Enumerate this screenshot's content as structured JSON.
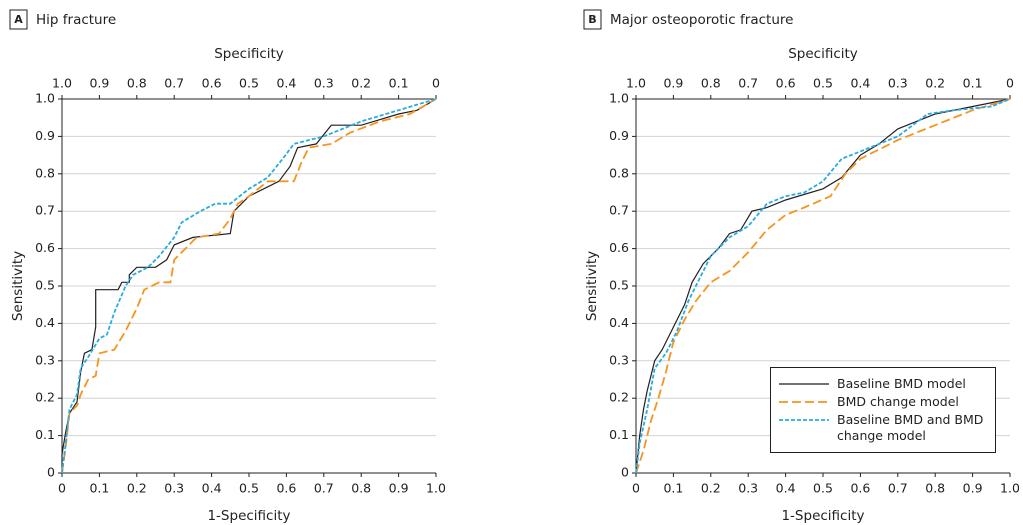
{
  "chart_data": [
    {
      "type": "line",
      "panel_label": "A",
      "title": "Hip fracture",
      "x2label": "Specificity",
      "xlabel": "1-Specificity",
      "ylabel": "Sensitivity",
      "xlim": [
        0,
        1
      ],
      "xticks": [
        0,
        0.1,
        0.2,
        0.3,
        0.4,
        0.5,
        0.6,
        0.7,
        0.8,
        0.9,
        {
          "value": 1,
          "label": "1.0"
        }
      ],
      "x2lim": [
        1,
        0
      ],
      "x2ticks": [
        {
          "value": 1,
          "label": "1.0"
        },
        0.9,
        0.8,
        0.7,
        0.6,
        0.5,
        0.4,
        0.3,
        0.2,
        0.1,
        0
      ],
      "ylim": [
        0,
        1
      ],
      "yticks": [
        0,
        0.1,
        0.2,
        0.3,
        0.4,
        0.5,
        0.6,
        0.7,
        0.8,
        0.9,
        {
          "value": 1,
          "label": "1.0"
        }
      ],
      "grid": true,
      "series": [
        {
          "color": "#231f20",
          "style": "solid",
          "x": [
            0,
            0,
            0.01,
            0.02,
            0.04,
            0.05,
            0.06,
            0.08,
            0.09,
            0.09,
            0.15,
            0.16,
            0.18,
            0.18,
            0.2,
            0.25,
            0.28,
            0.3,
            0.35,
            0.45,
            0.46,
            0.5,
            0.58,
            0.61,
            0.63,
            0.68,
            0.72,
            0.8,
            0.9,
            0.95,
            1
          ],
          "values": [
            0,
            0.05,
            0.11,
            0.16,
            0.19,
            0.27,
            0.32,
            0.33,
            0.39,
            0.49,
            0.49,
            0.51,
            0.51,
            0.53,
            0.55,
            0.55,
            0.57,
            0.61,
            0.63,
            0.64,
            0.7,
            0.74,
            0.78,
            0.82,
            0.87,
            0.88,
            0.93,
            0.93,
            0.96,
            0.97,
            1
          ]
        },
        {
          "color": "#f7941d",
          "style": "dashed",
          "x": [
            0,
            0.01,
            0.02,
            0.04,
            0.05,
            0.07,
            0.09,
            0.1,
            0.14,
            0.17,
            0.2,
            0.22,
            0.26,
            0.29,
            0.3,
            0.33,
            0.36,
            0.42,
            0.45,
            0.47,
            0.5,
            0.55,
            0.62,
            0.64,
            0.66,
            0.72,
            0.77,
            0.85,
            0.93,
            1
          ],
          "values": [
            0,
            0.07,
            0.16,
            0.18,
            0.21,
            0.25,
            0.26,
            0.32,
            0.33,
            0.38,
            0.44,
            0.49,
            0.51,
            0.51,
            0.57,
            0.6,
            0.63,
            0.64,
            0.68,
            0.72,
            0.74,
            0.78,
            0.78,
            0.83,
            0.87,
            0.88,
            0.91,
            0.94,
            0.96,
            1
          ]
        },
        {
          "color": "#29abe2",
          "style": "dotted",
          "x": [
            0,
            0.01,
            0.02,
            0.04,
            0.05,
            0.07,
            0.1,
            0.12,
            0.14,
            0.17,
            0.19,
            0.23,
            0.26,
            0.3,
            0.32,
            0.37,
            0.41,
            0.45,
            0.5,
            0.55,
            0.59,
            0.62,
            0.7,
            0.8,
            0.9,
            1
          ],
          "values": [
            0,
            0.08,
            0.17,
            0.21,
            0.28,
            0.31,
            0.36,
            0.37,
            0.43,
            0.5,
            0.53,
            0.55,
            0.58,
            0.63,
            0.67,
            0.7,
            0.72,
            0.72,
            0.76,
            0.79,
            0.84,
            0.88,
            0.9,
            0.94,
            0.97,
            1
          ]
        }
      ]
    },
    {
      "type": "line",
      "panel_label": "B",
      "title": "Major osteoporotic fracture",
      "x2label": "Specificity",
      "xlabel": "1-Specificity",
      "ylabel": "Sensitivity",
      "xlim": [
        0,
        1
      ],
      "xticks": [
        0,
        0.1,
        0.2,
        0.3,
        0.4,
        0.5,
        0.6,
        0.7,
        0.8,
        0.9,
        {
          "value": 1,
          "label": "1.0"
        }
      ],
      "x2lim": [
        1,
        0
      ],
      "x2ticks": [
        {
          "value": 1,
          "label": "1.0"
        },
        0.9,
        0.8,
        0.7,
        0.6,
        0.5,
        0.4,
        0.3,
        0.2,
        0.1,
        0
      ],
      "ylim": [
        0,
        1
      ],
      "yticks": [
        0,
        0.1,
        0.2,
        0.3,
        0.4,
        0.5,
        0.6,
        0.7,
        0.8,
        0.9,
        {
          "value": 1,
          "label": "1.0"
        }
      ],
      "grid": true,
      "legend": "lower right",
      "series": [
        {
          "name": "Baseline BMD model",
          "color": "#231f20",
          "style": "solid",
          "x": [
            0,
            0.01,
            0.02,
            0.03,
            0.05,
            0.07,
            0.1,
            0.13,
            0.15,
            0.18,
            0.22,
            0.25,
            0.28,
            0.31,
            0.35,
            0.4,
            0.5,
            0.55,
            0.6,
            0.65,
            0.7,
            0.8,
            0.9,
            1
          ],
          "values": [
            0,
            0.1,
            0.17,
            0.22,
            0.3,
            0.33,
            0.39,
            0.45,
            0.51,
            0.56,
            0.6,
            0.64,
            0.65,
            0.7,
            0.71,
            0.73,
            0.76,
            0.79,
            0.85,
            0.88,
            0.92,
            0.96,
            0.98,
            1
          ]
        },
        {
          "name": "BMD change model",
          "color": "#f7941d",
          "style": "dashed",
          "x": [
            0,
            0.02,
            0.04,
            0.06,
            0.08,
            0.1,
            0.13,
            0.16,
            0.2,
            0.25,
            0.3,
            0.35,
            0.4,
            0.45,
            0.52,
            0.56,
            0.6,
            0.7,
            0.8,
            0.9,
            1
          ],
          "values": [
            0,
            0.06,
            0.14,
            0.2,
            0.27,
            0.35,
            0.41,
            0.46,
            0.51,
            0.54,
            0.59,
            0.65,
            0.69,
            0.71,
            0.74,
            0.8,
            0.84,
            0.89,
            0.93,
            0.97,
            1
          ]
        },
        {
          "name": "Baseline BMD and BMD change model",
          "color": "#29abe2",
          "style": "dotted",
          "x": [
            0,
            0.01,
            0.03,
            0.05,
            0.08,
            0.11,
            0.14,
            0.17,
            0.2,
            0.25,
            0.3,
            0.35,
            0.4,
            0.45,
            0.5,
            0.55,
            0.6,
            0.7,
            0.78,
            0.85,
            0.95,
            1
          ],
          "values": [
            0,
            0.08,
            0.17,
            0.28,
            0.32,
            0.38,
            0.46,
            0.52,
            0.58,
            0.63,
            0.66,
            0.72,
            0.74,
            0.75,
            0.78,
            0.84,
            0.86,
            0.9,
            0.96,
            0.97,
            0.98,
            1
          ]
        }
      ]
    }
  ]
}
